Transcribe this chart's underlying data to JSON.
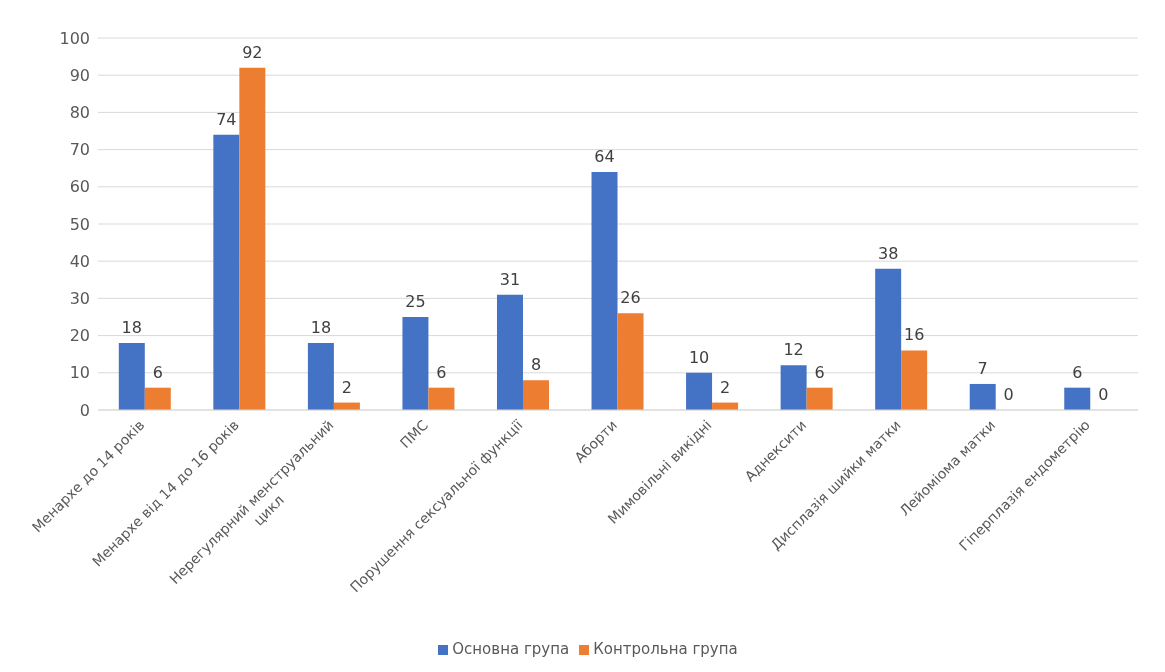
{
  "chart_data": {
    "type": "bar",
    "categories": [
      "Менархе до 14 років",
      "Менархе від 14 до 16 років",
      "Нерегулярний менструальний цикл",
      "ПМС",
      "Порушення сексуальної функції",
      "Аборти",
      "Мимовільні викідні",
      "Аднексити",
      "Дисплазія шийки матки",
      "Лейоміома матки",
      "Гіперплазія ендометрію"
    ],
    "series": [
      {
        "name": "Основна група",
        "color": "#4472c4",
        "values": [
          18,
          74,
          18,
          25,
          31,
          64,
          10,
          12,
          38,
          7,
          6
        ]
      },
      {
        "name": "Контрольна група",
        "color": "#ed7d31",
        "values": [
          6,
          92,
          2,
          6,
          8,
          26,
          2,
          6,
          16,
          0,
          0
        ]
      }
    ],
    "ylim": [
      0,
      100
    ],
    "yticks": [
      0,
      10,
      20,
      30,
      40,
      50,
      60,
      70,
      80,
      90,
      100
    ],
    "grid": "y",
    "legend": "bottom",
    "data_labels": true
  }
}
